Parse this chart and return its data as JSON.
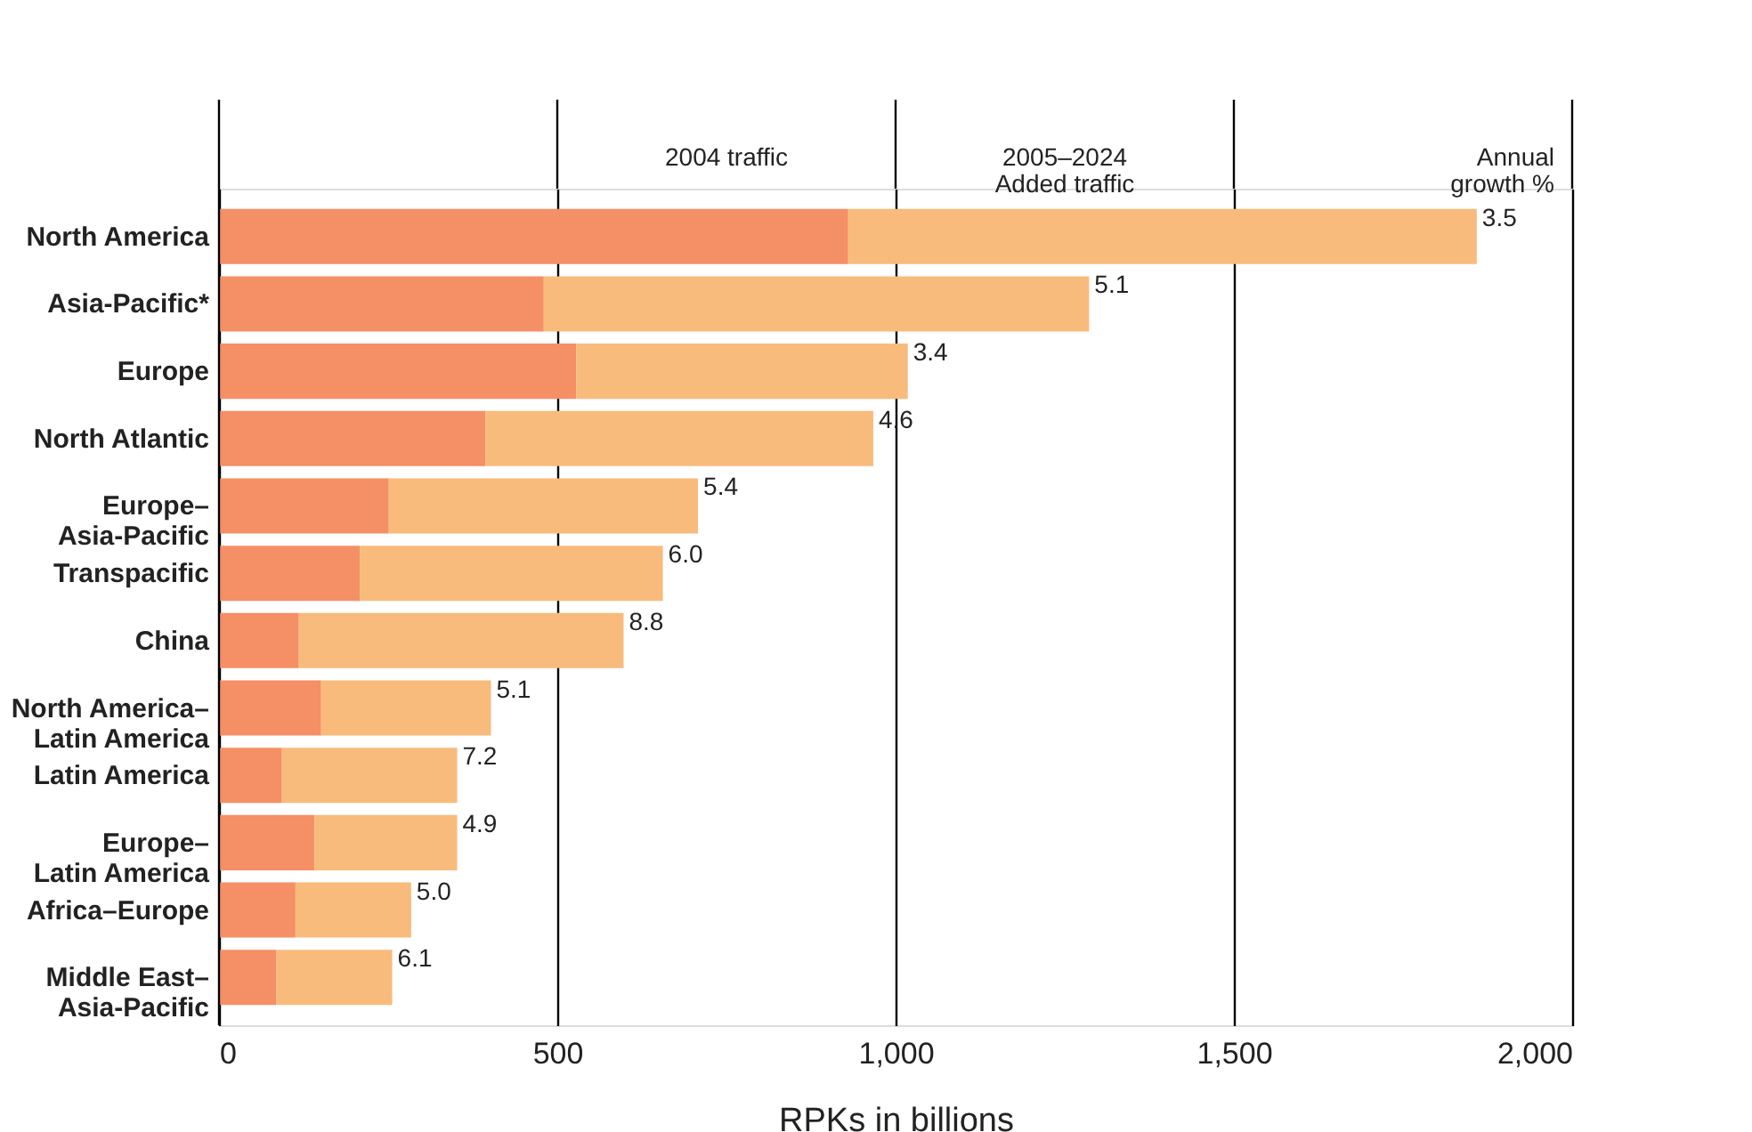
{
  "chart_data": {
    "type": "bar",
    "orientation": "horizontal",
    "stacked": true,
    "categories": [
      "North America",
      "Asia-Pacific*",
      "Europe",
      "North Atlantic",
      "Europe–\nAsia-Pacific",
      "Transpacific",
      "China",
      "North America–\nLatin America",
      "Latin America",
      "Europe–\nLatin America",
      "Africa–Europe",
      "Middle East–\nAsia-Pacific"
    ],
    "series": [
      {
        "color": "#f58f66",
        "values": [
          930,
          480,
          528,
          394,
          251,
          208,
          118,
          151,
          93,
          141,
          113,
          85
        ]
      },
      {
        "color": "#f8bb7c",
        "values": [
          929,
          806,
          490,
          573,
          457,
          448,
          480,
          251,
          259,
          211,
          171,
          171
        ]
      }
    ],
    "annotations": [
      "2004 traffic",
      "2005–2024\nAdded traffic",
      "Annual\ngrowth %",
      {
        "text": "3.5",
        "x": 1859,
        "y": "North America"
      },
      {
        "text": "5.1",
        "x": 1286,
        "y": "Asia-Pacific*"
      },
      {
        "text": "3.4",
        "x": 1018,
        "y": "Europe"
      },
      {
        "text": "4.6",
        "x": 967,
        "y": "North Atlantic"
      },
      {
        "text": "5.4",
        "x": 708,
        "y": "Europe–\nAsia-Pacific"
      },
      {
        "text": "6.0",
        "x": 656,
        "y": "Transpacific"
      },
      {
        "text": "8.8",
        "x": 598,
        "y": "China"
      },
      {
        "text": "5.1",
        "x": 402,
        "y": "North America–\nLatin America"
      },
      {
        "text": "7.2",
        "x": 352,
        "y": "Latin America"
      },
      {
        "text": "4.9",
        "x": 352,
        "y": "Europe–\nLatin America"
      },
      {
        "text": "5.0",
        "x": 284,
        "y": "Africa–Europe"
      },
      {
        "text": "6.1",
        "x": 256,
        "y": "Middle East–\nAsia-Pacific"
      }
    ],
    "xlabel": "RPKs in billions",
    "xlim": [
      0,
      2000
    ],
    "xticks": [
      0,
      {
        "value": 500,
        "label": "500"
      },
      {
        "value": 1000,
        "label": "1,000"
      },
      {
        "value": 1500,
        "label": "1,500"
      },
      {
        "value": 2000,
        "label": "2,000"
      }
    ],
    "grid": "x",
    "legend": false
  }
}
